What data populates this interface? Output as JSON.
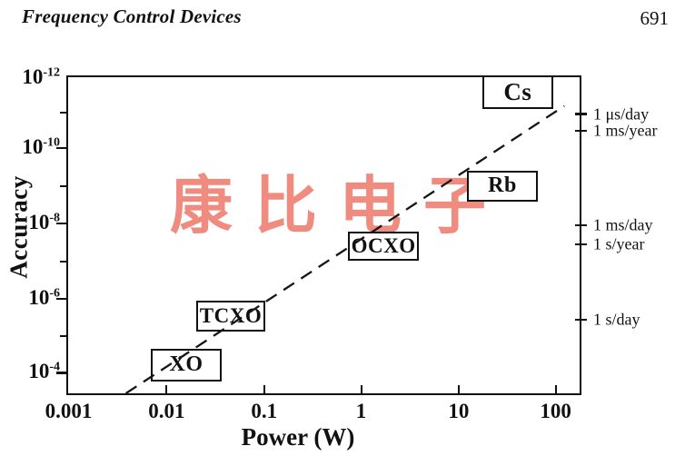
{
  "page": {
    "title": "Frequency Control Devices",
    "page_number": "691"
  },
  "watermark": {
    "text": "康比电子",
    "color": "#ee7f72"
  },
  "chart_data": {
    "type": "scatter",
    "title": "",
    "xlabel": "Power (W)",
    "ylabel": "Accuracy",
    "x_scale": "log",
    "y_scale": "log, inverted (best accuracy 1e-12 at top)",
    "x_range_w": [
      0.001,
      170
    ],
    "y_range_accuracy": [
      1e-12,
      0.00035
    ],
    "grid": false,
    "x_ticks": [
      {
        "label": "0.001",
        "pos_pct": 0
      },
      {
        "label": "0.01",
        "pos_pct": 19.2
      },
      {
        "label": "0.1",
        "pos_pct": 38.3
      },
      {
        "label": "1",
        "pos_pct": 57.3
      },
      {
        "label": "10",
        "pos_pct": 76.4
      },
      {
        "label": "100",
        "pos_pct": 95.4
      }
    ],
    "y_ticks": [
      {
        "base": "10",
        "exp": "-12",
        "pos_pct": 0,
        "minor": false
      },
      {
        "pos_pct": 11.2,
        "minor": true
      },
      {
        "base": "10",
        "exp": "-10",
        "pos_pct": 22.4,
        "minor": false
      },
      {
        "pos_pct": 34.4,
        "minor": true
      },
      {
        "base": "10",
        "exp": "-8",
        "pos_pct": 46.3,
        "minor": false
      },
      {
        "pos_pct": 58.2,
        "minor": true
      },
      {
        "base": "10",
        "exp": "-6",
        "pos_pct": 70.2,
        "minor": false
      },
      {
        "pos_pct": 81.8,
        "minor": true
      },
      {
        "base": "10",
        "exp": "-4",
        "pos_pct": 93.5,
        "minor": false
      }
    ],
    "right_axis_labels": [
      {
        "label": "1 μs/day",
        "pos_pct": 11.6
      },
      {
        "label": "1 ms/year",
        "pos_pct": 17.0
      },
      {
        "label": "1 ms/day",
        "pos_pct": 46.9
      },
      {
        "label": "1 s/year",
        "pos_pct": 52.8
      },
      {
        "label": "1 s/day",
        "pos_pct": 76.7
      }
    ],
    "devices": [
      {
        "label": "Cs",
        "power_w": 40,
        "accuracy": 3e-12,
        "box": {
          "left_pct": 81.0,
          "top_pct": -0.7,
          "width_pct": 13.8,
          "height_pct": 10.8
        },
        "font_px": 27
      },
      {
        "label": "Rb",
        "power_w": 28,
        "accuracy": 9e-10,
        "box": {
          "left_pct": 78.0,
          "top_pct": 29.5,
          "width_pct": 13.8,
          "height_pct": 9.9
        },
        "font_px": 24
      },
      {
        "label": "OCXO",
        "power_w": 1.7,
        "accuracy": 4e-08,
        "box": {
          "left_pct": 54.7,
          "top_pct": 48.9,
          "width_pct": 13.9,
          "height_pct": 9.1
        },
        "font_px": 23
      },
      {
        "label": "TCXO",
        "power_w": 0.05,
        "accuracy": 3e-06,
        "box": {
          "left_pct": 25.0,
          "top_pct": 70.7,
          "width_pct": 13.6,
          "height_pct": 9.9
        },
        "font_px": 23
      },
      {
        "label": "XO",
        "power_w": 0.016,
        "accuracy": 6e-05,
        "box": {
          "left_pct": 16.2,
          "top_pct": 85.8,
          "width_pct": 13.8,
          "height_pct": 10.5
        },
        "font_px": 24
      }
    ],
    "trend_line": {
      "style": "dashed",
      "points": [
        {
          "power_w": 0.004,
          "accuracy": 0.00035,
          "x_pct": 11.3,
          "y_pct": 100
        },
        {
          "power_w": 124,
          "accuracy": 6e-12,
          "x_pct": 97.0,
          "y_pct": 9.1
        }
      ]
    }
  }
}
